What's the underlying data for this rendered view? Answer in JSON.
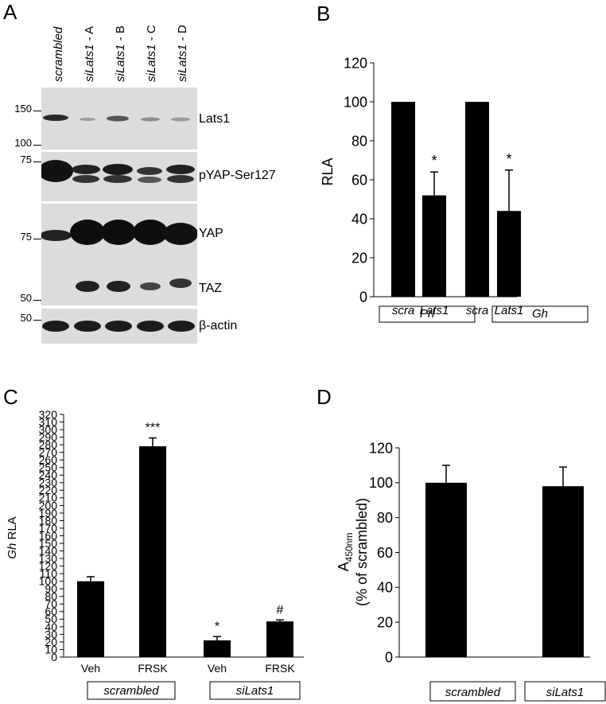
{
  "panels": {
    "A": {
      "letter": "A",
      "lanes": [
        {
          "italic": "scrambled",
          "suffix": ""
        },
        {
          "italic": "siLats1",
          "suffix": " - A"
        },
        {
          "italic": "siLats1",
          "suffix": " - B"
        },
        {
          "italic": "siLats1",
          "suffix": " - C"
        },
        {
          "italic": "siLats1",
          "suffix": " - D"
        }
      ],
      "blots": [
        {
          "name": "Lats1",
          "markers": [
            "150",
            "100"
          ]
        },
        {
          "name": "pYAP-Ser127",
          "markers": [
            "75"
          ]
        },
        {
          "name": "YAP",
          "markers": [
            "75"
          ]
        },
        {
          "name": "TAZ",
          "markers": [
            "50"
          ]
        },
        {
          "name": "β-actin",
          "markers": [
            "50"
          ]
        }
      ]
    },
    "B": {
      "letter": "B"
    },
    "C": {
      "letter": "C"
    },
    "D": {
      "letter": "D"
    }
  },
  "chart_data": [
    {
      "panel": "B",
      "type": "bar",
      "ylabel": "RLA",
      "ylim": [
        0,
        120
      ],
      "yticks": [
        "0",
        "20",
        "40",
        "60",
        "80",
        "100",
        "120"
      ],
      "categories": [
        "scra",
        "Lats1",
        "scra",
        "Lats1"
      ],
      "values": [
        100,
        52,
        100,
        44
      ],
      "errors": [
        0,
        12,
        0,
        21
      ],
      "annotations": [
        "",
        "*",
        "",
        "*"
      ],
      "groups": [
        {
          "label": "Prl"
        },
        {
          "label": "Gh"
        }
      ]
    },
    {
      "panel": "C",
      "type": "bar",
      "ylabel_italic": "Gh",
      "ylabel": " RLA",
      "ylim": [
        0,
        320
      ],
      "yticks": [
        "0",
        "10",
        "20",
        "30",
        "40",
        "50",
        "60",
        "70",
        "80",
        "90",
        "100",
        "110",
        "120",
        "130",
        "140",
        "150",
        "160",
        "170",
        "180",
        "190",
        "200",
        "210",
        "220",
        "230",
        "240",
        "250",
        "260",
        "270",
        "280",
        "290",
        "300",
        "310",
        "320"
      ],
      "categories": [
        "Veh",
        "FRSK",
        "Veh",
        "FRSK"
      ],
      "values": [
        100,
        278,
        22,
        47
      ],
      "errors": [
        6,
        11,
        5,
        2
      ],
      "annotations": [
        "",
        "***",
        "*",
        "#"
      ],
      "groups": [
        {
          "label": "scrambled"
        },
        {
          "label": "siLats1"
        }
      ]
    },
    {
      "panel": "D",
      "type": "bar",
      "ylabel_line1": "A",
      "ylabel_sub": "450nm",
      "ylabel_line2": "(% of scrambled)",
      "ylim": [
        0,
        120
      ],
      "yticks": [
        "0",
        "20",
        "40",
        "60",
        "80",
        "100",
        "120"
      ],
      "categories": [
        "",
        ""
      ],
      "values": [
        100,
        98
      ],
      "errors": [
        10,
        11
      ],
      "annotations": [
        "",
        ""
      ],
      "groups": [
        {
          "label": "scrambled"
        },
        {
          "label": "siLats1"
        }
      ]
    }
  ]
}
